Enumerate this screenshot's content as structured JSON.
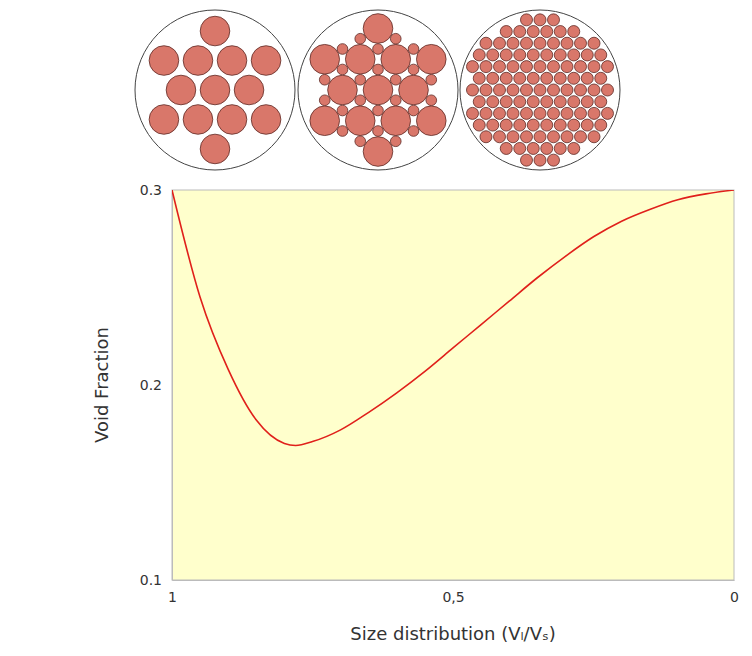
{
  "chart_data": {
    "type": "line",
    "x_label": "Size distribution (Vₗ/Vₛ)",
    "y_label": "Void Fraction",
    "x": [
      1,
      0.95,
      0.9,
      0.85,
      0.8,
      0.78,
      0.75,
      0.7,
      0.65,
      0.6,
      0.55,
      0.5,
      0.45,
      0.4,
      0.35,
      0.3,
      0.25,
      0.2,
      0.15,
      0.1,
      0.05,
      0
    ],
    "values": [
      0.3,
      0.245,
      0.208,
      0.182,
      0.17,
      0.169,
      0.171,
      0.177,
      0.186,
      0.196,
      0.207,
      0.219,
      0.231,
      0.243,
      0.255,
      0.266,
      0.276,
      0.284,
      0.29,
      0.295,
      0.298,
      0.3
    ],
    "color": "#e0201b",
    "xlim": [
      1,
      0
    ],
    "ylim": [
      0.1,
      0.3
    ],
    "xticks": [
      1,
      {
        "value": 0.5,
        "label": "0,5"
      },
      0
    ],
    "yticks": [
      0.1,
      0.2,
      0.3
    ],
    "grid": false
  }
}
